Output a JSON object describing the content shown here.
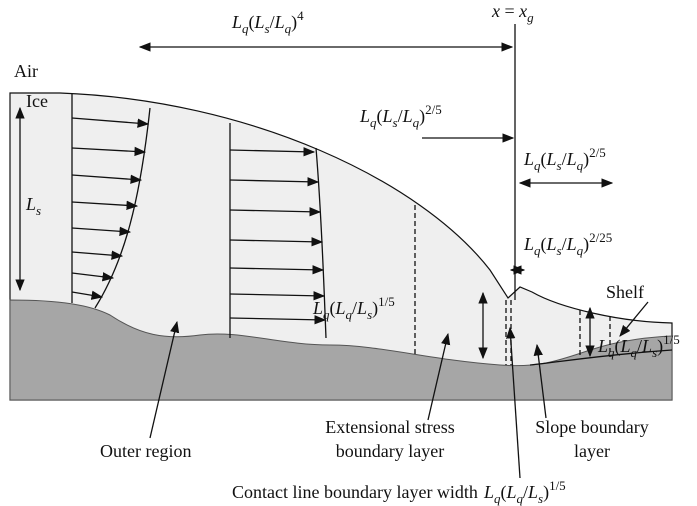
{
  "texts": {
    "air": "Air",
    "ice": "Ice",
    "shelf": "Shelf",
    "outer_region": "Outer region",
    "extensional": [
      "Extensional stress",
      "boundary layer"
    ],
    "slope": [
      "Slope boundary",
      "layer"
    ],
    "contact": "Contact line boundary layer width"
  },
  "math": {
    "outer_scale": [
      {
        "i": "L"
      },
      {
        "sub": "q"
      },
      {
        "r": "("
      },
      {
        "i": "L"
      },
      {
        "sub": "s"
      },
      {
        "r": "/"
      },
      {
        "i": "L"
      },
      {
        "sub": "q"
      },
      {
        "r": ")"
      },
      {
        "sup": "4"
      }
    ],
    "grounding_line": [
      {
        "i": "x"
      },
      {
        "r": " = "
      },
      {
        "i": "x"
      },
      {
        "sub": "g"
      }
    ],
    "ice_thickness": [
      {
        "i": "L"
      },
      {
        "sub": "s"
      }
    ],
    "upstream_scale": [
      {
        "i": "L"
      },
      {
        "sub": "q"
      },
      {
        "r": "("
      },
      {
        "i": "L"
      },
      {
        "sub": "s"
      },
      {
        "r": "/"
      },
      {
        "i": "L"
      },
      {
        "sub": "q"
      },
      {
        "r": ")"
      },
      {
        "sup": "2/5"
      }
    ],
    "downstream_scale": [
      {
        "i": "L"
      },
      {
        "sub": "q"
      },
      {
        "r": "("
      },
      {
        "i": "L"
      },
      {
        "sub": "s"
      },
      {
        "r": "/"
      },
      {
        "i": "L"
      },
      {
        "sub": "q"
      },
      {
        "r": ")"
      },
      {
        "sup": "2/5"
      }
    ],
    "contact_scale": [
      {
        "i": "L"
      },
      {
        "sub": "q"
      },
      {
        "r": "("
      },
      {
        "i": "L"
      },
      {
        "sub": "s"
      },
      {
        "r": "/"
      },
      {
        "i": "L"
      },
      {
        "sub": "q"
      },
      {
        "r": ")"
      },
      {
        "sup": "2/25"
      }
    ],
    "stress_thickness": [
      {
        "i": "L"
      },
      {
        "sub": "q"
      },
      {
        "r": "("
      },
      {
        "i": "L"
      },
      {
        "sub": "q"
      },
      {
        "r": "/"
      },
      {
        "i": "L"
      },
      {
        "sub": "s"
      },
      {
        "r": ")"
      },
      {
        "sup": "1/5"
      }
    ],
    "shelf_thickness": [
      {
        "i": "L"
      },
      {
        "sub": "q"
      },
      {
        "r": "("
      },
      {
        "i": "L"
      },
      {
        "sub": "q"
      },
      {
        "r": "/"
      },
      {
        "i": "L"
      },
      {
        "sub": "s"
      },
      {
        "r": ")"
      },
      {
        "sup": "1/5"
      }
    ],
    "contact_width": [
      {
        "i": "L"
      },
      {
        "sub": "q"
      },
      {
        "r": "("
      },
      {
        "i": "L"
      },
      {
        "sub": "q"
      },
      {
        "r": "/"
      },
      {
        "i": "L"
      },
      {
        "sub": "s"
      },
      {
        "r": ")"
      },
      {
        "sup": "1/5"
      }
    ]
  }
}
